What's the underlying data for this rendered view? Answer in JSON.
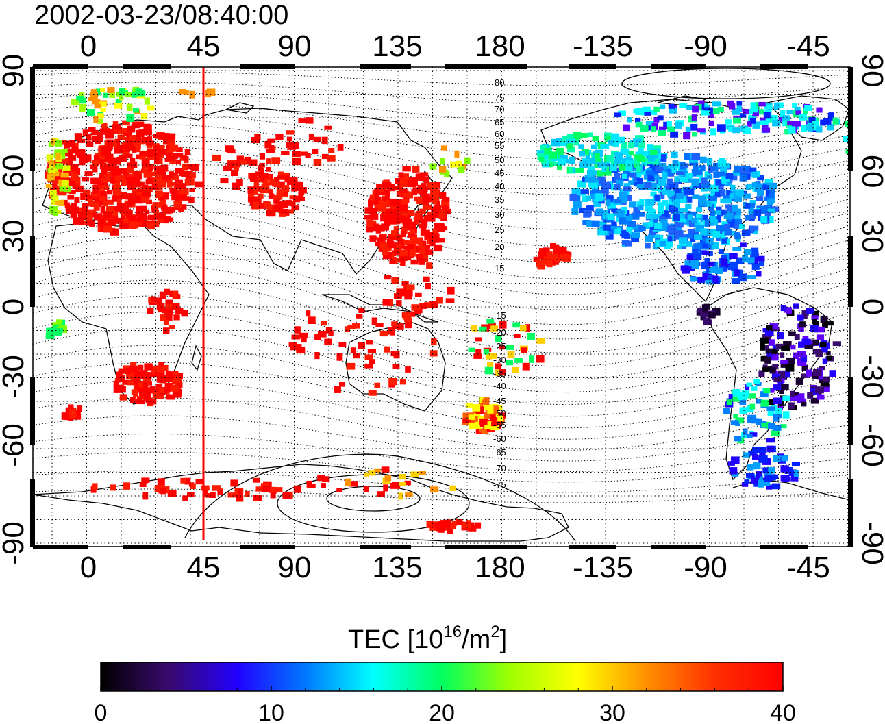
{
  "timestamp": "2002-03-23/08:40:00",
  "map": {
    "lon_ticks_top": [
      "0",
      "45",
      "90",
      "135",
      "180",
      "-135",
      "-90",
      "-45"
    ],
    "lon_ticks_bottom": [
      "0",
      "45",
      "90",
      "135",
      "180",
      "-135",
      "-90",
      "-45"
    ],
    "lat_ticks_left": [
      "90",
      "60",
      "30",
      "0",
      "-30",
      "-60",
      "-90"
    ],
    "lat_ticks_right": [
      "90",
      "60",
      "30",
      "0",
      "-30",
      "-60",
      "-90"
    ],
    "grid": "dotted, every 15 degrees",
    "meridian_marker_color": "#ff0000",
    "north_contour_labels": [
      "80",
      "75",
      "70",
      "65",
      "60",
      "55",
      "50",
      "45",
      "40",
      "35",
      "30",
      "25",
      "20",
      "15"
    ],
    "south_contour_labels": [
      "-15",
      "-20",
      "-25",
      "-30",
      "-35",
      "-40",
      "-45",
      "-50",
      "-55",
      "-60",
      "-65",
      "-70",
      "-75"
    ]
  },
  "colorbar": {
    "title_main": "TEC  [10",
    "title_exp": "16",
    "title_mid": "/m",
    "title_exp2": "2",
    "title_end": "]",
    "ticks": [
      "0",
      "10",
      "20",
      "30",
      "40"
    ],
    "min": 0,
    "max": 40,
    "colormap": [
      "#000000",
      "#3a0a6e",
      "#2200ff",
      "#0078ff",
      "#00ffff",
      "#00ff60",
      "#a0ff00",
      "#ffff00",
      "#ff9000",
      "#ff3000",
      "#ff0000"
    ]
  }
}
